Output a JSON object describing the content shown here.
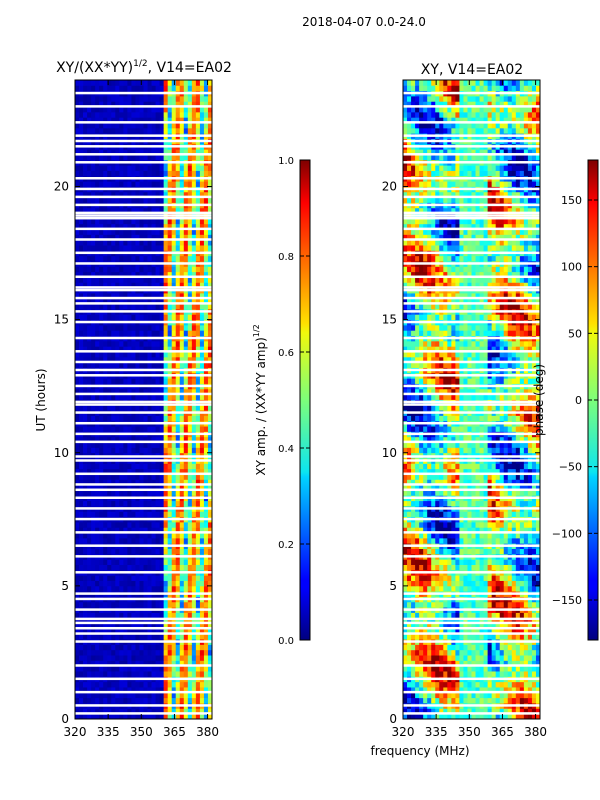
{
  "suptitle": "2018-04-07 0.0-24.0",
  "chart_data": [
    {
      "type": "heatmap",
      "title_main": "XY/(XX*YY)",
      "title_sup": "1/2",
      "title_rest": ", V14=EA02",
      "xlabel": "",
      "ylabel": "UT (hours)",
      "xlim": [
        320,
        382
      ],
      "ylim": [
        0,
        24
      ],
      "xticks": [
        "320",
        "335",
        "350",
        "365",
        "380"
      ],
      "xtick_values": [
        320,
        335,
        350,
        365,
        380
      ],
      "yticks": [
        "0",
        "5",
        "10",
        "15",
        "20"
      ],
      "ytick_values": [
        0,
        5,
        10,
        15,
        20
      ],
      "colorbar": {
        "label_main": "XY amp. / (XX*YY amp)",
        "label_sup": "1/2",
        "range": [
          0.0,
          1.0
        ],
        "ticks": [
          "0.0",
          "0.2",
          "0.4",
          "0.6",
          "0.8",
          "1.0"
        ],
        "tick_values": [
          0.0,
          0.2,
          0.4,
          0.6,
          0.8,
          1.0
        ],
        "colormap": "jet"
      },
      "flagged_hours": [
        0.2,
        0.5,
        1.0,
        1.5,
        2.0,
        2.9,
        3.2,
        3.4,
        3.6,
        3.75,
        4.1,
        4.5,
        4.7,
        5.5,
        6.1,
        6.5,
        7.0,
        7.5,
        7.9,
        8.3,
        8.6,
        8.8,
        9.2,
        9.7,
        9.85,
        10.4,
        10.7,
        11.1,
        11.5,
        11.8,
        11.9,
        12.2,
        12.5,
        12.9,
        13.1,
        13.4,
        13.8,
        14.3,
        14.9,
        15.3,
        15.6,
        15.8,
        16.1,
        16.2,
        16.6,
        17.1,
        17.5,
        18.0,
        18.4,
        18.8,
        18.9,
        19.0,
        19.3,
        19.6,
        19.9,
        20.3,
        20.9,
        21.2,
        21.5,
        21.7,
        21.9,
        22.4,
        23.0,
        23.5
      ]
    },
    {
      "type": "heatmap",
      "title_main": "XY, V14=EA02",
      "xlabel": "frequency (MHz)",
      "ylabel": "",
      "xlim": [
        320,
        382
      ],
      "ylim": [
        0,
        24
      ],
      "xticks": [
        "320",
        "335",
        "350",
        "365",
        "380"
      ],
      "xtick_values": [
        320,
        335,
        350,
        365,
        380
      ],
      "yticks": [
        "0",
        "5",
        "10",
        "15",
        "20"
      ],
      "ytick_values": [
        0,
        5,
        10,
        15,
        20
      ],
      "colorbar": {
        "label_main": "phase (deg)",
        "range": [
          -180,
          180
        ],
        "ticks": [
          "−150",
          "−100",
          "−50",
          "0",
          "50",
          "100",
          "150"
        ],
        "tick_values": [
          -150,
          -100,
          -50,
          0,
          50,
          100,
          150
        ],
        "colormap": "jet"
      },
      "flagged_hours": [
        0.2,
        0.5,
        1.0,
        1.5,
        2.0,
        2.9,
        3.2,
        3.4,
        3.6,
        3.75,
        4.1,
        4.5,
        4.7,
        5.5,
        6.1,
        6.5,
        7.0,
        7.5,
        7.9,
        8.3,
        8.6,
        8.8,
        9.2,
        9.7,
        9.85,
        10.4,
        10.7,
        11.1,
        11.5,
        11.8,
        11.9,
        12.2,
        12.5,
        12.9,
        13.1,
        13.4,
        13.8,
        14.3,
        14.9,
        15.3,
        15.6,
        15.8,
        16.1,
        16.2,
        16.6,
        17.1,
        17.5,
        18.0,
        18.4,
        18.8,
        18.9,
        19.0,
        19.3,
        19.6,
        19.9,
        20.3,
        20.9,
        21.2,
        21.5,
        21.7,
        21.9,
        22.4,
        23.0,
        23.5
      ]
    }
  ]
}
